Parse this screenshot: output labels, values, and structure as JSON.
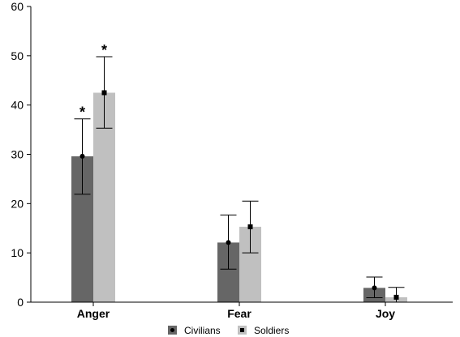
{
  "chart_data": {
    "type": "bar",
    "categories": [
      "Anger",
      "Fear",
      "Joy"
    ],
    "series": [
      {
        "name": "Civilians",
        "color": "#666666",
        "marker": "circle",
        "values": [
          29.6,
          12.1,
          2.9
        ],
        "error_low": [
          21.9,
          6.7,
          0.9
        ],
        "error_high": [
          37.2,
          17.7,
          5.1
        ],
        "significance": [
          "*",
          "",
          ""
        ]
      },
      {
        "name": "Soldiers",
        "color": "#c0c0c0",
        "marker": "square",
        "values": [
          42.5,
          15.3,
          1.0
        ],
        "error_low": [
          35.3,
          10.0,
          0.0
        ],
        "error_high": [
          49.8,
          20.5,
          3.0
        ],
        "significance": [
          "*",
          "",
          ""
        ]
      }
    ],
    "ylim": [
      0,
      60
    ],
    "yticks": [
      "0",
      "10",
      "20",
      "30",
      "40",
      "50",
      "60"
    ],
    "legend_position": "bottom",
    "grid": false
  }
}
